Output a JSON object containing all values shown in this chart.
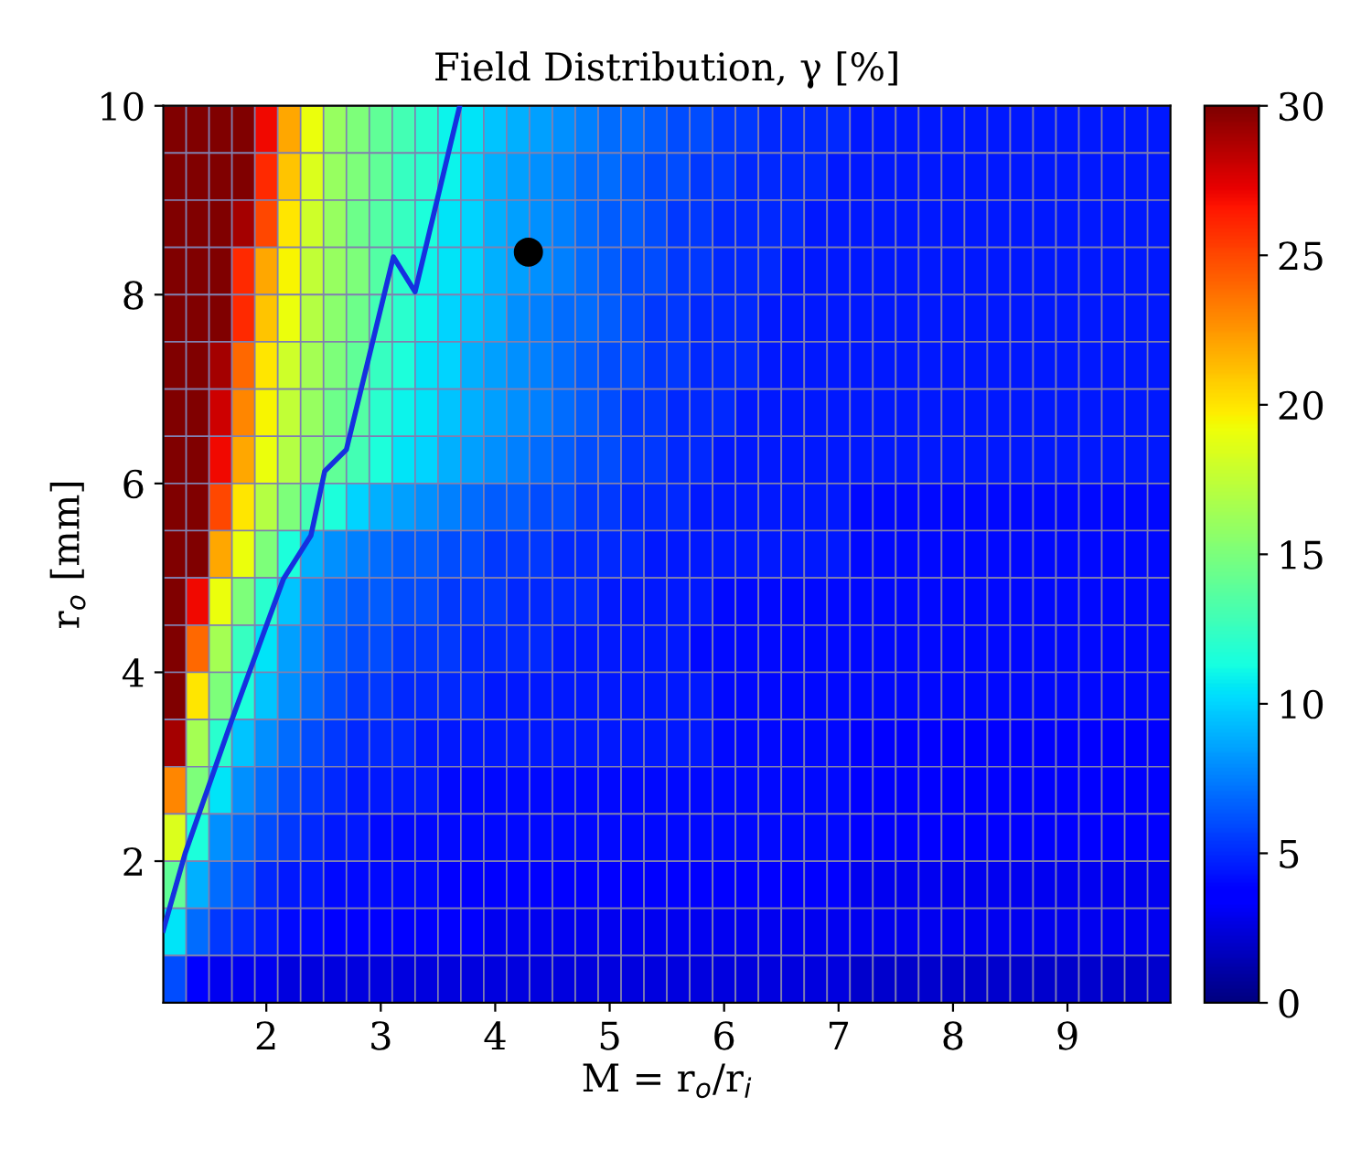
{
  "chart_data": {
    "type": "heatmap",
    "title": "Field Distribution, γ [%]",
    "xlabel": "M = r$_{o}$/r$_{i}$",
    "ylabel": "r$_{o}$ [mm]",
    "x": [
      1.2,
      1.4,
      1.6,
      1.8,
      2.0,
      2.2,
      2.4,
      2.6,
      2.8,
      3.0,
      3.2,
      3.4,
      3.6,
      3.8,
      4.0,
      4.2,
      4.4,
      4.6,
      4.8,
      5.0,
      5.2,
      5.4,
      5.6,
      5.8,
      6.0,
      6.2,
      6.4,
      6.6,
      6.8,
      7.0,
      7.2,
      7.4,
      7.6,
      7.8,
      8.0,
      8.2,
      8.4,
      8.6,
      8.8,
      9.0,
      9.2,
      9.4,
      9.6,
      9.8
    ],
    "y": [
      9.75,
      9.25,
      8.75,
      8.25,
      7.75,
      7.25,
      6.75,
      6.25,
      5.75,
      5.25,
      4.75,
      4.25,
      3.75,
      3.25,
      2.75,
      2.25,
      1.75,
      1.25,
      0.75
    ],
    "cells": [
      [
        30,
        30,
        30,
        30,
        27,
        22,
        19,
        16,
        15,
        14,
        13,
        12,
        11,
        10.5,
        9.5,
        9,
        8.5,
        8,
        7.5,
        7,
        7,
        6.5,
        6,
        6,
        5.5,
        5.5,
        5,
        5,
        5,
        5,
        4.5,
        4.5,
        4.5,
        4.5,
        4.5,
        4.5,
        4.5,
        4.5,
        4.5,
        4.5,
        4.5,
        4.5,
        4.5,
        4.5
      ],
      [
        30,
        30,
        30,
        30,
        26,
        21,
        18.5,
        16,
        15,
        14,
        12.5,
        12,
        11,
        10,
        9,
        8.5,
        8,
        7.5,
        7,
        7,
        6.5,
        6,
        6,
        5.5,
        5.5,
        5,
        5,
        5,
        5,
        4.5,
        4.5,
        4.5,
        4.5,
        4.5,
        4.5,
        4.5,
        4.5,
        4.5,
        4.5,
        4.5,
        4.5,
        4.5,
        4.5,
        4.5
      ],
      [
        30,
        30,
        30,
        29,
        25,
        20,
        18,
        16,
        14.5,
        13.5,
        12.5,
        11.5,
        10.5,
        10,
        9,
        8.5,
        8,
        7.5,
        7,
        6.5,
        6.5,
        6,
        5.5,
        5.5,
        5,
        5,
        5,
        5,
        4.5,
        4.5,
        4.5,
        4.5,
        4.5,
        4.5,
        4.5,
        4.5,
        4.5,
        4.5,
        4.5,
        4.5,
        4.5,
        4.5,
        4.5,
        4.5
      ],
      [
        30,
        30,
        30,
        26,
        22,
        19.5,
        17.5,
        16,
        15,
        13.5,
        12,
        11,
        10.5,
        10,
        9,
        8.5,
        8,
        7.5,
        7,
        6.5,
        6,
        6,
        5.5,
        5.5,
        5,
        5,
        5,
        4.5,
        4.5,
        4.5,
        4.5,
        4.5,
        4.5,
        4.5,
        4.5,
        4.5,
        4.5,
        4.5,
        4.5,
        4.5,
        4.5,
        4.5,
        4.5,
        4.5
      ],
      [
        30,
        30,
        30,
        26,
        21,
        19,
        17,
        15.5,
        14.5,
        13,
        12,
        11,
        10,
        9.5,
        9,
        8,
        7.5,
        7,
        7,
        6.5,
        6,
        5.5,
        5.5,
        5,
        5,
        5,
        4.5,
        4.5,
        4.5,
        4.5,
        4.5,
        4.5,
        4.5,
        4.5,
        4.5,
        4.5,
        4.5,
        4.5,
        4.5,
        4.5,
        4.5,
        4.5,
        4.5,
        4.5
      ],
      [
        30,
        30,
        29,
        24,
        20,
        18,
        16.5,
        15,
        14,
        12.5,
        11.5,
        10.5,
        10,
        9,
        8.5,
        8,
        7.5,
        7,
        6.5,
        6,
        6,
        5.5,
        5.5,
        5,
        5,
        5,
        4.5,
        4.5,
        4.5,
        4.5,
        4.5,
        4.5,
        4.5,
        4.5,
        4.5,
        4.5,
        4.5,
        4.5,
        4.5,
        4.5,
        4.5,
        4.5,
        4.5,
        4.5
      ],
      [
        30,
        30,
        28,
        23,
        19.5,
        17.5,
        16,
        14.5,
        13.5,
        12,
        11,
        10.5,
        9.5,
        9,
        8.5,
        8,
        7.5,
        7,
        6.5,
        6,
        5.5,
        5.5,
        5,
        5,
        5,
        4.5,
        4.5,
        4.5,
        4.5,
        4.5,
        4.5,
        4.5,
        4.5,
        4.5,
        4.5,
        4.5,
        4.5,
        4.5,
        4.5,
        4.5,
        4.5,
        4.5,
        4.5,
        4.5
      ],
      [
        30,
        30,
        27,
        22,
        19,
        17,
        15.5,
        14,
        13,
        11.5,
        10.5,
        10,
        9,
        8.5,
        8,
        7.5,
        7,
        6.5,
        6,
        6,
        5.5,
        5.5,
        5,
        5,
        4.5,
        4.5,
        4.5,
        4.5,
        4.5,
        4.5,
        4.5,
        4.5,
        4.5,
        4.5,
        4.5,
        4.5,
        4.5,
        4.5,
        4.5,
        4.5,
        4.5,
        4.5,
        4.5,
        4.5
      ],
      [
        30,
        30,
        25,
        20,
        17,
        15,
        13,
        11.5,
        10,
        9,
        8.5,
        8,
        7.5,
        7,
        6.5,
        6.5,
        6,
        6,
        5.5,
        5.5,
        5,
        5,
        5,
        4.5,
        4.5,
        4.5,
        4.5,
        4.5,
        4.5,
        4.5,
        4,
        4,
        4,
        4,
        4,
        4,
        4,
        4,
        4,
        4,
        4,
        4,
        4,
        4
      ],
      [
        30,
        30,
        22,
        19,
        15,
        11.5,
        9,
        8,
        7.5,
        7,
        6.5,
        6.5,
        6,
        6,
        5.5,
        5.5,
        5.5,
        5,
        5,
        5,
        5,
        4.5,
        4.5,
        4.5,
        4.5,
        4.5,
        4.5,
        4.5,
        4.5,
        4.5,
        4,
        4,
        4,
        4,
        4,
        4,
        4,
        4,
        4,
        4,
        4,
        4,
        4,
        4
      ],
      [
        30,
        27,
        19,
        15,
        12,
        9.5,
        8,
        7,
        6.5,
        6.5,
        6,
        6,
        5.5,
        5.5,
        5.5,
        5,
        5,
        5,
        5,
        4.5,
        4.5,
        4.5,
        4.5,
        4.5,
        4,
        4,
        4,
        4,
        4,
        4,
        4,
        4,
        4,
        4,
        4,
        4,
        4,
        4,
        4,
        4,
        4,
        4,
        4,
        4
      ],
      [
        30,
        24,
        16.5,
        12.5,
        10.5,
        8.5,
        7.5,
        6.5,
        6,
        6,
        5.5,
        5.5,
        5.5,
        5,
        5,
        5,
        5,
        4.5,
        4.5,
        4.5,
        4.5,
        4.5,
        4.5,
        4,
        4,
        4,
        4,
        4,
        4,
        4,
        4,
        4,
        4,
        4,
        4,
        4,
        4,
        4,
        4,
        4,
        4,
        4,
        4,
        4
      ],
      [
        30,
        20,
        15,
        11.5,
        9.5,
        8,
        7,
        6,
        5.5,
        5.5,
        5,
        5,
        5,
        5,
        4.5,
        4.5,
        4.5,
        4.5,
        4.5,
        4.5,
        4.5,
        4.5,
        4.5,
        4.5,
        4,
        4,
        4,
        4,
        4,
        4,
        4,
        4,
        4,
        4,
        4,
        4,
        4,
        4,
        4,
        4,
        4,
        4,
        4,
        4
      ],
      [
        29,
        16.5,
        12,
        9.5,
        8,
        7,
        6,
        5.5,
        5,
        5,
        5,
        4.5,
        4.5,
        4.5,
        4.5,
        4.5,
        4.5,
        4.5,
        4.5,
        4.5,
        4.5,
        4.5,
        4.5,
        4.5,
        4,
        4,
        4,
        4,
        4,
        4,
        3.5,
        3.5,
        3.5,
        3.5,
        3.5,
        3.5,
        3.5,
        3.5,
        3.5,
        3.5,
        3.5,
        3.5,
        3.5,
        3.5
      ],
      [
        23,
        15,
        10.5,
        8,
        7,
        6,
        5.5,
        5,
        4.5,
        4.5,
        4.5,
        4.5,
        4,
        4,
        4,
        4,
        4,
        4,
        4,
        4,
        4,
        4,
        4,
        4,
        4,
        4,
        4,
        4,
        4,
        4,
        3.5,
        3.5,
        3.5,
        3.5,
        3.5,
        3.5,
        3.5,
        3.5,
        3.5,
        3.5,
        3.5,
        3.5,
        3.5,
        3.5
      ],
      [
        18.5,
        11.5,
        8,
        7,
        6,
        5.5,
        5,
        4.5,
        4.5,
        4,
        4,
        4,
        4,
        4,
        4,
        4,
        4,
        4,
        4,
        4,
        4,
        4,
        4,
        4,
        4,
        4,
        4,
        4,
        4,
        4,
        3.5,
        3.5,
        3.5,
        3.5,
        3.5,
        3.5,
        3.5,
        3.5,
        3.5,
        3.5,
        3.5,
        3.5,
        3.5,
        3.5
      ],
      [
        14,
        9,
        7,
        6,
        5,
        4.5,
        4.5,
        4,
        4,
        4,
        4,
        4,
        3.5,
        3.5,
        3.5,
        3.5,
        3.5,
        3.5,
        3.5,
        3.5,
        3.5,
        3.5,
        3.5,
        3.5,
        3.5,
        3.5,
        3.5,
        3.5,
        3.5,
        3.5,
        3,
        3,
        3,
        3,
        3,
        3,
        3,
        3,
        3,
        3,
        3,
        3,
        3,
        3
      ],
      [
        10.5,
        7,
        5.5,
        5,
        4.5,
        4,
        4,
        3.5,
        3.5,
        3.5,
        3.5,
        3.5,
        3.5,
        3.5,
        3,
        3,
        3,
        3,
        3,
        3,
        3,
        3,
        3,
        3,
        3,
        3,
        3,
        3,
        3,
        3,
        3,
        3,
        3,
        3,
        3,
        3,
        3,
        3,
        3,
        3,
        3,
        3,
        3,
        3
      ],
      [
        6,
        3.5,
        3,
        3,
        3,
        2.5,
        2.5,
        2.5,
        2.5,
        2.5,
        2.5,
        2.5,
        2.5,
        2.5,
        2.5,
        2.5,
        2.5,
        2.5,
        2.5,
        2.5,
        2.5,
        2.5,
        2.5,
        2.5,
        2.5,
        2.5,
        2.5,
        2.5,
        2.5,
        2.5,
        2,
        2,
        2,
        2,
        2,
        2,
        2,
        2,
        2,
        2,
        2,
        2,
        2,
        2
      ]
    ],
    "clim": [
      0,
      30
    ],
    "cticks": [
      0,
      5,
      10,
      15,
      20,
      25,
      30
    ],
    "xlim": [
      1.1,
      9.9
    ],
    "ylim": [
      0.5,
      10
    ],
    "xticks": [
      2,
      3,
      4,
      5,
      6,
      7,
      8,
      9
    ],
    "yticks": [
      2,
      4,
      6,
      8,
      10
    ],
    "series": [
      {
        "type": "line",
        "color": "#1530e0",
        "x": [
          1.1,
          1.29,
          1.7,
          2.15,
          2.39,
          2.51,
          2.7,
          3.11,
          3.3,
          3.69
        ],
        "values": [
          1.27,
          2.08,
          3.5,
          4.99,
          5.45,
          6.13,
          6.36,
          8.4,
          8.03,
          10
        ]
      },
      {
        "type": "scatter",
        "color": "#000000",
        "marker": "circle",
        "x": [
          4.29
        ],
        "values": [
          8.45
        ]
      }
    ],
    "grid": false,
    "legend": false
  }
}
